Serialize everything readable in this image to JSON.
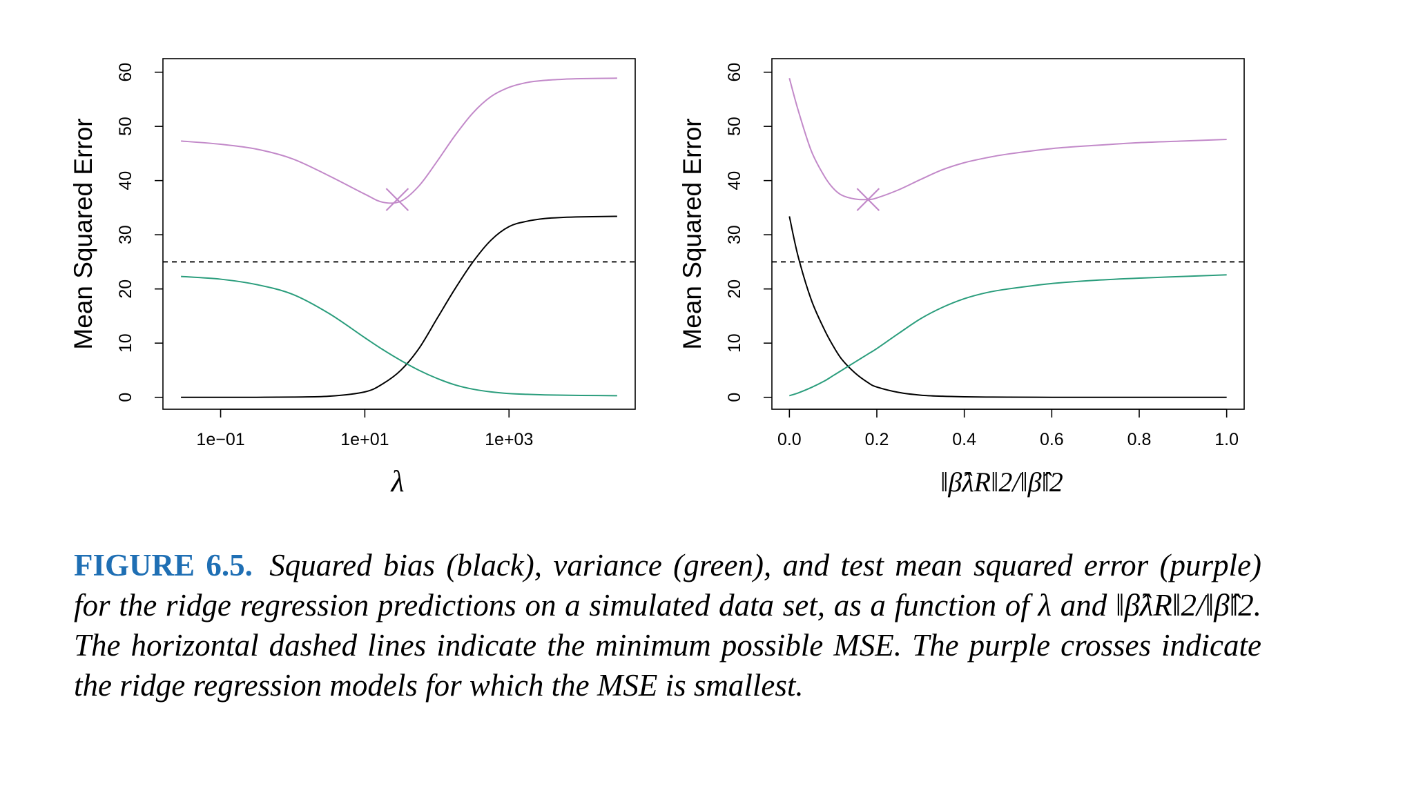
{
  "figure": {
    "label": "FIGURE 6.5.",
    "caption_text": "Squared bias (black), variance (green), and test mean squared error (purple) for the ridge regression predictions on a simulated data set, as a function of λ and ‖β̂λR‖2/‖β̂‖2. The horizontal dashed lines indicate the minimum possible MSE. The purple crosses indicate the ridge regression models for which the MSE is smallest."
  },
  "colors": {
    "bias": "#000000",
    "variance": "#2a9d7c",
    "mse": "#c289c9",
    "dashed": "#000000"
  },
  "chart_data": [
    {
      "type": "line",
      "x_scale": "log10",
      "xlim": [
        -1.8,
        4.75
      ],
      "ylim": [
        -2.2,
        62.5
      ],
      "xlabel": "λ",
      "ylabel": "Mean Squared Error",
      "yticks": [
        0,
        10,
        20,
        30,
        40,
        50,
        60
      ],
      "yticklabels": [
        "0",
        "10",
        "20",
        "30",
        "40",
        "50",
        "60"
      ],
      "xticks": [
        -1,
        1,
        3
      ],
      "xticklabels": [
        "1e−01",
        "1e+01",
        "1e+03"
      ],
      "hline": 25,
      "min_marker": {
        "x": 1.45,
        "y": 36.5
      },
      "x": [
        -1.55,
        -1.0,
        -0.5,
        0.0,
        0.5,
        1.0,
        1.25,
        1.5,
        1.75,
        2.0,
        2.25,
        2.5,
        2.75,
        3.0,
        3.25,
        3.5,
        3.75,
        4.0,
        4.5
      ],
      "series": [
        {
          "name": "bias",
          "values": [
            0.0,
            0.0,
            0.0,
            0.05,
            0.2,
            1.0,
            2.5,
            5.0,
            9.0,
            14.5,
            20.0,
            25.0,
            29.0,
            31.5,
            32.5,
            33.0,
            33.2,
            33.3,
            33.4
          ]
        },
        {
          "name": "variance",
          "values": [
            22.3,
            21.8,
            20.8,
            19.0,
            15.5,
            11.0,
            8.8,
            6.8,
            5.0,
            3.5,
            2.3,
            1.5,
            1.0,
            0.7,
            0.55,
            0.45,
            0.4,
            0.35,
            0.3
          ]
        },
        {
          "name": "mse",
          "values": [
            47.3,
            46.7,
            45.8,
            44.0,
            40.9,
            37.5,
            36.0,
            36.2,
            39.0,
            43.5,
            48.3,
            52.5,
            55.5,
            57.2,
            58.1,
            58.5,
            58.7,
            58.8,
            58.9
          ]
        }
      ]
    },
    {
      "type": "line",
      "x_scale": "linear",
      "xlim": [
        -0.04,
        1.04
      ],
      "ylim": [
        -2.2,
        62.5
      ],
      "xlabel": "‖β̂λR‖2/‖β̂‖2",
      "ylabel": "Mean Squared Error",
      "yticks": [
        0,
        10,
        20,
        30,
        40,
        50,
        60
      ],
      "yticklabels": [
        "0",
        "10",
        "20",
        "30",
        "40",
        "50",
        "60"
      ],
      "xticks": [
        0,
        0.2,
        0.4,
        0.6,
        0.8,
        1.0
      ],
      "xticklabels": [
        "0.0",
        "0.2",
        "0.4",
        "0.6",
        "0.8",
        "1.0"
      ],
      "hline": 25,
      "min_marker": {
        "x": 0.18,
        "y": 36.5
      },
      "x": [
        0.0,
        0.02,
        0.05,
        0.08,
        0.1,
        0.12,
        0.15,
        0.18,
        0.2,
        0.25,
        0.3,
        0.35,
        0.4,
        0.45,
        0.5,
        0.6,
        0.7,
        0.8,
        0.9,
        1.0
      ],
      "series": [
        {
          "name": "bias",
          "values": [
            33.4,
            26.0,
            18.0,
            12.5,
            9.5,
            7.0,
            4.5,
            2.7,
            1.9,
            0.9,
            0.4,
            0.2,
            0.1,
            0.05,
            0.03,
            0.0,
            0.0,
            0.0,
            0.0,
            0.0
          ]
        },
        {
          "name": "variance",
          "values": [
            0.3,
            0.8,
            1.8,
            3.0,
            4.0,
            5.0,
            6.5,
            8.0,
            9.0,
            11.8,
            14.5,
            16.6,
            18.2,
            19.3,
            20.0,
            21.0,
            21.6,
            22.0,
            22.3,
            22.6
          ]
        },
        {
          "name": "mse",
          "values": [
            58.9,
            53.0,
            45.5,
            40.8,
            38.6,
            37.3,
            36.6,
            36.5,
            36.8,
            38.3,
            40.2,
            42.0,
            43.3,
            44.2,
            44.9,
            45.9,
            46.5,
            47.0,
            47.3,
            47.6
          ]
        }
      ]
    }
  ]
}
